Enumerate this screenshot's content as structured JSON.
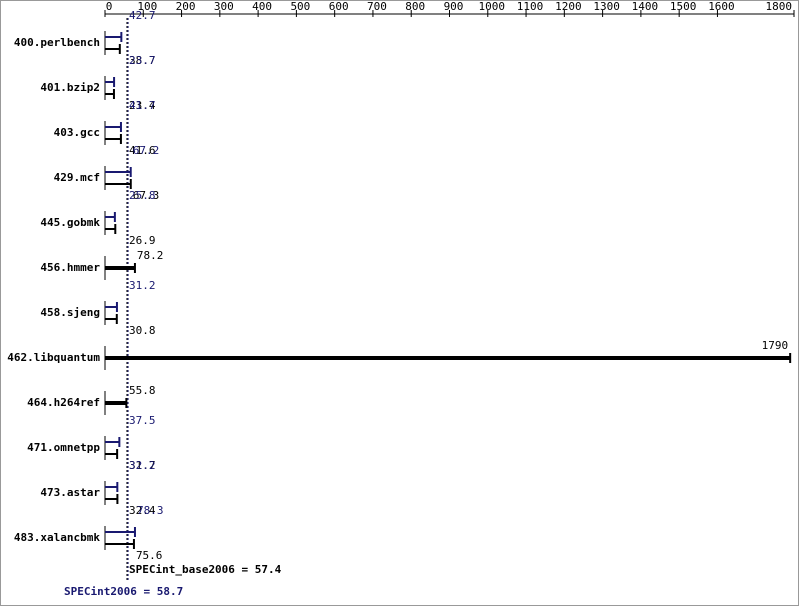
{
  "chart_data": {
    "type": "bar",
    "orientation": "horizontal",
    "categories": [
      "400.perlbench",
      "401.bzip2",
      "403.gcc",
      "429.mcf",
      "445.gobmk",
      "456.hmmer",
      "458.sjeng",
      "462.libquantum",
      "464.h264ref",
      "471.omnetpp",
      "473.astar",
      "483.xalancbmk"
    ],
    "series": [
      {
        "color": "#191970",
        "values": [
          42.7,
          23.7,
          41.7,
          67.2,
          25.8,
          null,
          31.2,
          null,
          null,
          37.5,
          32.2,
          78.3
        ]
      },
      {
        "color": "#000000",
        "values": [
          38.7,
          23.4,
          41.6,
          67.3,
          26.9,
          78.2,
          30.8,
          1790,
          55.8,
          31.7,
          32.4,
          75.6
        ]
      }
    ],
    "xlim": [
      0,
      1800
    ],
    "xticks": [
      0,
      100,
      200,
      300,
      400,
      500,
      600,
      700,
      800,
      900,
      1000,
      1100,
      1200,
      1300,
      1400,
      1500,
      1600,
      1800
    ],
    "means": [
      {
        "value": 57.4,
        "label": "SPECint_base2006 = 57.4",
        "color": "#000000"
      },
      {
        "value": 58.7,
        "label": "SPECint2006 = 58.7",
        "color": "#191970"
      }
    ]
  }
}
